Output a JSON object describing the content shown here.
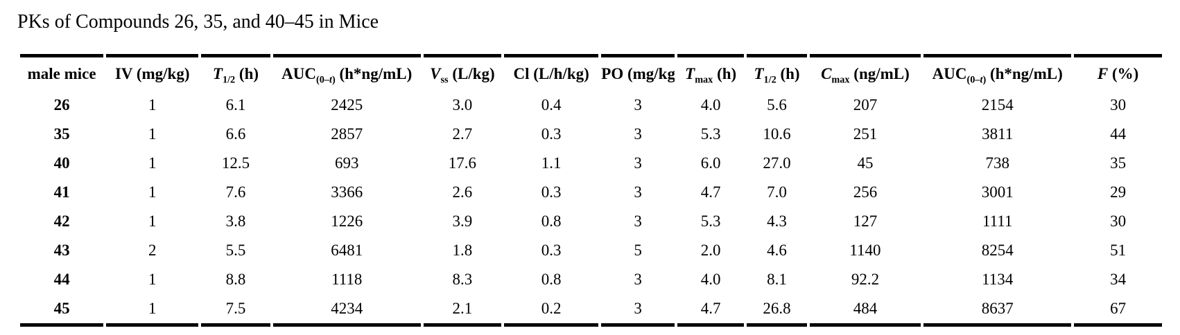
{
  "title": "PKs of Compounds 26, 35, and 40–45 in Mice",
  "colors": {
    "background": "#ffffff",
    "text": "#000000",
    "rule": "#000000"
  },
  "table": {
    "columns": [
      {
        "id": "compound",
        "width": 7.5,
        "label": [
          {
            "t": "male mice"
          }
        ]
      },
      {
        "id": "iv-dose",
        "width": 8.3,
        "label": [
          {
            "t": "IV (mg/kg)"
          }
        ]
      },
      {
        "id": "iv-t-half",
        "width": 6.2,
        "label": [
          {
            "t": "T",
            "s": "i"
          },
          {
            "t": "1/2",
            "s": "sub"
          },
          {
            "t": " (h)"
          }
        ]
      },
      {
        "id": "iv-auc",
        "width": 13.3,
        "label": [
          {
            "t": "AUC"
          },
          {
            "t": "(0–",
            "s": "sub"
          },
          {
            "t": "t",
            "s": "subi"
          },
          {
            "t": ")",
            "s": "sub"
          },
          {
            "t": " (h*ng/mL)"
          }
        ]
      },
      {
        "id": "vss",
        "width": 7.0,
        "label": [
          {
            "t": "V",
            "s": "i"
          },
          {
            "t": "ss",
            "s": "sub"
          },
          {
            "t": " (L/kg)"
          }
        ]
      },
      {
        "id": "cl",
        "width": 8.5,
        "label": [
          {
            "t": "Cl (L/h/kg)"
          }
        ]
      },
      {
        "id": "po-dose",
        "width": 6.6,
        "label": [
          {
            "t": "PO (mg/kg)"
          }
        ]
      },
      {
        "id": "tmax",
        "width": 6.0,
        "label": [
          {
            "t": "T",
            "s": "i"
          },
          {
            "t": "max",
            "s": "sub"
          },
          {
            "t": " (h)"
          }
        ]
      },
      {
        "id": "po-t-half",
        "width": 5.4,
        "label": [
          {
            "t": "T",
            "s": "i"
          },
          {
            "t": "1/2",
            "s": "sub"
          },
          {
            "t": " (h)"
          }
        ]
      },
      {
        "id": "cmax",
        "width": 10.0,
        "label": [
          {
            "t": "C",
            "s": "i"
          },
          {
            "t": "max",
            "s": "sub"
          },
          {
            "t": " (ng/mL)"
          }
        ]
      },
      {
        "id": "po-auc",
        "width": 13.3,
        "label": [
          {
            "t": "AUC"
          },
          {
            "t": "(0–",
            "s": "sub"
          },
          {
            "t": "t",
            "s": "subi"
          },
          {
            "t": ")",
            "s": "sub"
          },
          {
            "t": " (h*ng/mL)"
          }
        ]
      },
      {
        "id": "f-percent",
        "width": 7.9,
        "label": [
          {
            "t": "F",
            "s": "i"
          },
          {
            "t": " (%)"
          }
        ]
      }
    ],
    "rows": [
      {
        "compound": "26",
        "values": [
          "1",
          "6.1",
          "2425",
          "3.0",
          "0.4",
          "3",
          "4.0",
          "5.6",
          "207",
          "2154",
          "30"
        ]
      },
      {
        "compound": "35",
        "values": [
          "1",
          "6.6",
          "2857",
          "2.7",
          "0.3",
          "3",
          "5.3",
          "10.6",
          "251",
          "3811",
          "44"
        ]
      },
      {
        "compound": "40",
        "values": [
          "1",
          "12.5",
          "693",
          "17.6",
          "1.1",
          "3",
          "6.0",
          "27.0",
          "45",
          "738",
          "35"
        ]
      },
      {
        "compound": "41",
        "values": [
          "1",
          "7.6",
          "3366",
          "2.6",
          "0.3",
          "3",
          "4.7",
          "7.0",
          "256",
          "3001",
          "29"
        ]
      },
      {
        "compound": "42",
        "values": [
          "1",
          "3.8",
          "1226",
          "3.9",
          "0.8",
          "3",
          "5.3",
          "4.3",
          "127",
          "1111",
          "30"
        ]
      },
      {
        "compound": "43",
        "values": [
          "2",
          "5.5",
          "6481",
          "1.8",
          "0.3",
          "5",
          "2.0",
          "4.6",
          "1140",
          "8254",
          "51"
        ]
      },
      {
        "compound": "44",
        "values": [
          "1",
          "8.8",
          "1118",
          "8.3",
          "0.8",
          "3",
          "4.0",
          "8.1",
          "92.2",
          "1134",
          "34"
        ]
      },
      {
        "compound": "45",
        "values": [
          "1",
          "7.5",
          "4234",
          "2.1",
          "0.2",
          "3",
          "4.7",
          "26.8",
          "484",
          "8637",
          "67"
        ]
      }
    ]
  }
}
